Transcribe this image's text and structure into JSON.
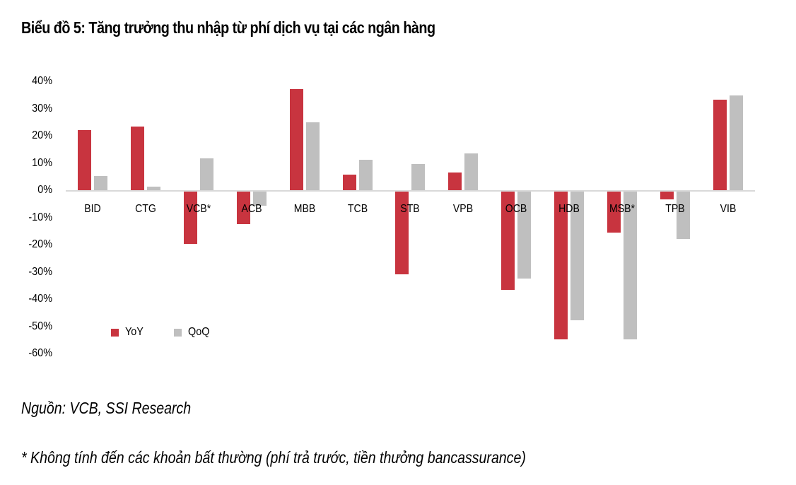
{
  "header": {
    "title": "Biểu đồ 5: Tăng trưởng thu nhập từ phí dịch vụ tại các ngân hàng"
  },
  "footer": {
    "source": "Nguồn: VCB, SSI Research",
    "note": "* Không tính đến các khoản bất thường (phí trả trước, tiền thưởng bancassurance)"
  },
  "legend": {
    "items": [
      {
        "label": "YoY",
        "color": "#c8343f"
      },
      {
        "label": "QoQ",
        "color": "#bfbfbf"
      }
    ]
  },
  "y_ticks": [
    "40%",
    "30%",
    "20%",
    "10%",
    "0%",
    "-10%",
    "-20%",
    "-30%",
    "-40%",
    "-50%",
    "-60%"
  ],
  "chart_data": {
    "type": "bar",
    "title": "Biểu đồ 5: Tăng trưởng thu nhập từ phí dịch vụ tại các ngân hàng",
    "xlabel": "",
    "ylabel": "",
    "ylim": [
      -0.6,
      0.4
    ],
    "grid": false,
    "legend_position": "bottom-left inside",
    "categories": [
      "BID",
      "CTG",
      "VCB*",
      "ACB",
      "MBB",
      "TCB",
      "STB",
      "VPB",
      "OCB",
      "HDB",
      "MSB*",
      "TPB",
      "VIB"
    ],
    "series": [
      {
        "name": "YoY",
        "color": "#c8343f",
        "values": [
          0.223,
          0.236,
          -0.192,
          -0.12,
          0.374,
          0.06,
          -0.304,
          0.068,
          -0.361,
          -0.543,
          -0.151,
          -0.028,
          0.335
        ]
      },
      {
        "name": "QoQ",
        "color": "#bfbfbf",
        "values": [
          0.055,
          0.016,
          0.12,
          -0.052,
          0.252,
          0.114,
          0.099,
          0.138,
          -0.319,
          -0.473,
          -0.543,
          -0.174,
          0.35
        ]
      }
    ]
  }
}
